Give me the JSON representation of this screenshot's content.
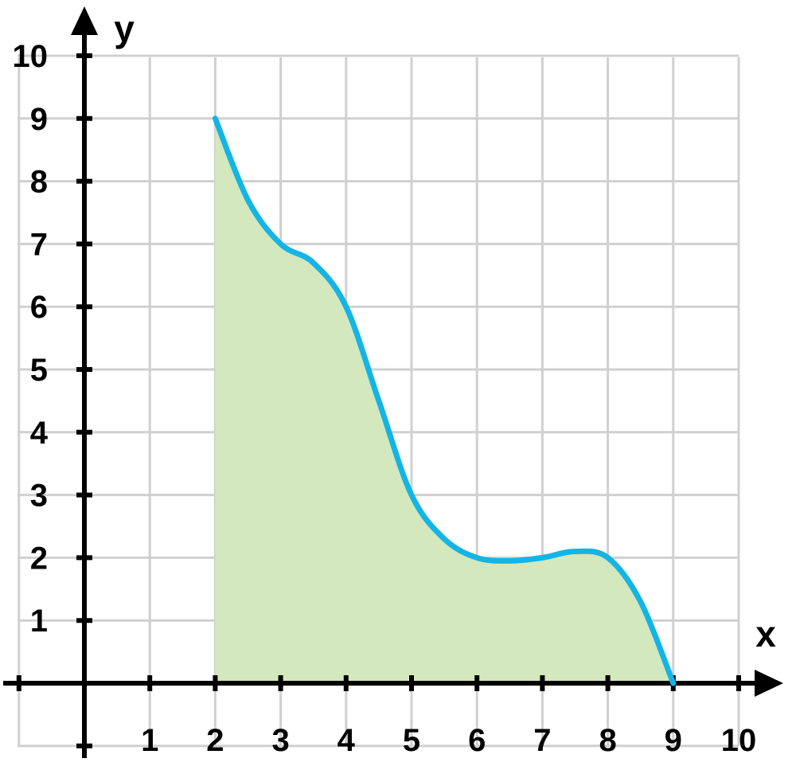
{
  "chart_data": {
    "type": "area",
    "xlabel": "x",
    "ylabel": "y",
    "xlim": [
      -1,
      10
    ],
    "ylim": [
      -1,
      10
    ],
    "x_ticks": [
      1,
      2,
      3,
      4,
      5,
      6,
      7,
      8,
      9,
      10
    ],
    "y_ticks": [
      1,
      2,
      3,
      4,
      5,
      6,
      7,
      8,
      9,
      10
    ],
    "grid": true,
    "series": [
      {
        "x": [
          2,
          2.5,
          3,
          3.5,
          4,
          4.5,
          5,
          5.5,
          6,
          6.5,
          7,
          7.5,
          8,
          8.5,
          9
        ],
        "y": [
          9,
          7.7,
          7,
          6.7,
          6,
          4.5,
          3,
          2.3,
          2,
          1.95,
          2,
          2.1,
          2,
          1.3,
          0
        ],
        "line_color": "#14b4e6",
        "fill_color": "#d3e8bd"
      }
    ],
    "shaded_region": {
      "from_x": 2,
      "to_x": 9,
      "description": "area under curve"
    }
  }
}
